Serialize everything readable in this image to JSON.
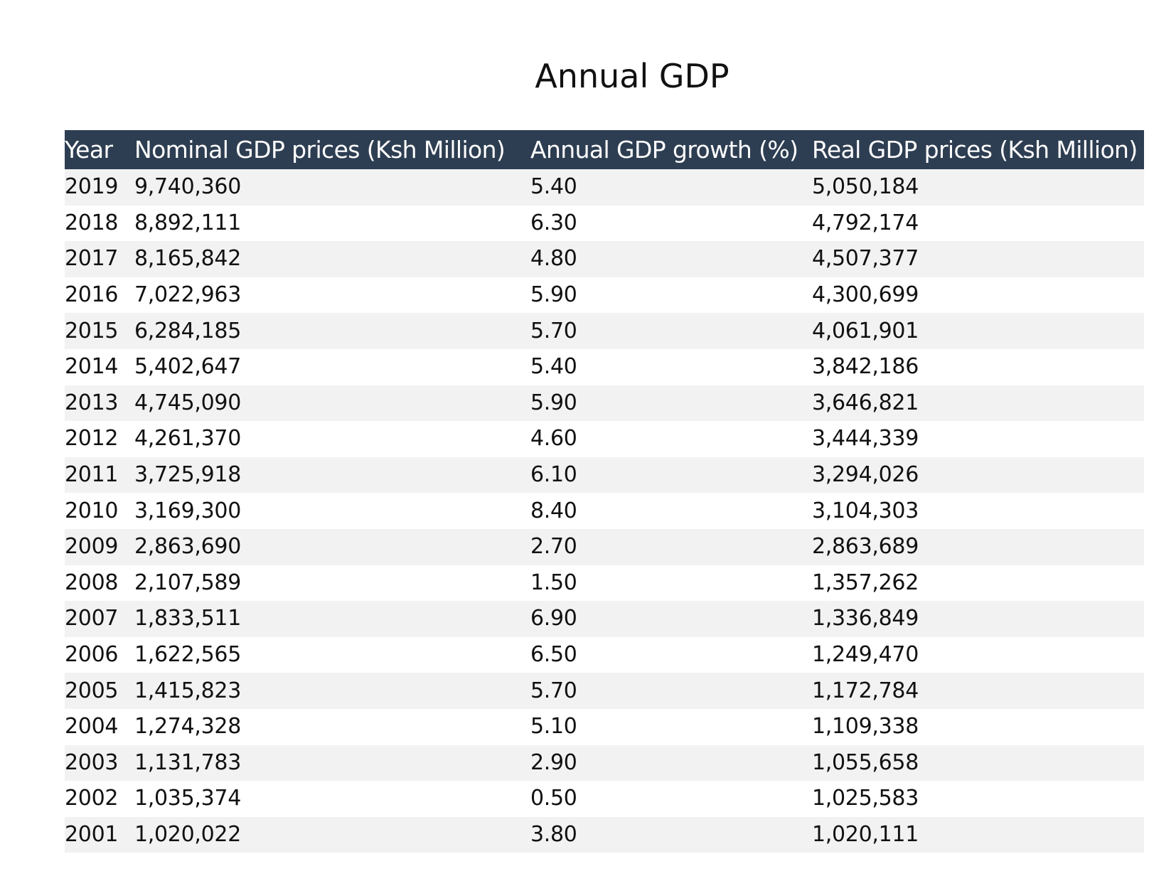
{
  "chart_data": {
    "type": "table",
    "title": "Annual GDP",
    "columns": [
      "Year",
      "Nominal GDP prices (Ksh Million)",
      "Annual GDP growth (%)",
      "Real GDP prices (Ksh Million)"
    ],
    "rows": [
      [
        "2019",
        "9,740,360",
        "5.40",
        "5,050,184"
      ],
      [
        "2018",
        "8,892,111",
        "6.30",
        "4,792,174"
      ],
      [
        "2017",
        "8,165,842",
        "4.80",
        "4,507,377"
      ],
      [
        "2016",
        "7,022,963",
        "5.90",
        "4,300,699"
      ],
      [
        "2015",
        "6,284,185",
        "5.70",
        "4,061,901"
      ],
      [
        "2014",
        "5,402,647",
        "5.40",
        "3,842,186"
      ],
      [
        "2013",
        "4,745,090",
        "5.90",
        "3,646,821"
      ],
      [
        "2012",
        "4,261,370",
        "4.60",
        "3,444,339"
      ],
      [
        "2011",
        "3,725,918",
        "6.10",
        "3,294,026"
      ],
      [
        "2010",
        "3,169,300",
        "8.40",
        "3,104,303"
      ],
      [
        "2009",
        "2,863,690",
        "2.70",
        "2,863,689"
      ],
      [
        "2008",
        "2,107,589",
        "1.50",
        "1,357,262"
      ],
      [
        "2007",
        "1,833,511",
        "6.90",
        "1,336,849"
      ],
      [
        "2006",
        "1,622,565",
        "6.50",
        "1,249,470"
      ],
      [
        "2005",
        "1,415,823",
        "5.70",
        "1,172,784"
      ],
      [
        "2004",
        "1,274,328",
        "5.10",
        "1,109,338"
      ],
      [
        "2003",
        "1,131,783",
        "2.90",
        "1,055,658"
      ],
      [
        "2002",
        "1,035,374",
        "0.50",
        "1,025,583"
      ],
      [
        "2001",
        "1,020,022",
        "3.80",
        "1,020,111"
      ]
    ],
    "colors": {
      "header_background": "#2e3e52",
      "header_text": "#ffffff",
      "stripe_row": "#f2f2f2",
      "plain_row": "#ffffff"
    }
  }
}
